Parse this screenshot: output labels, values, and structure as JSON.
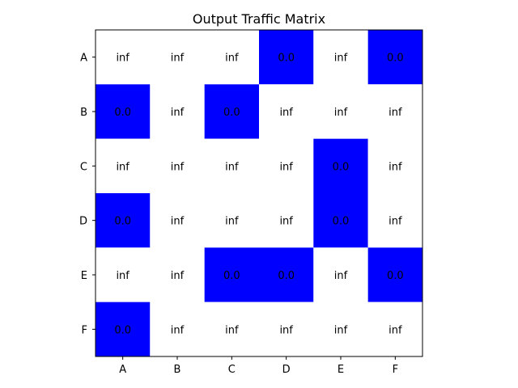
{
  "chart_data": {
    "type": "heatmap",
    "title": "Output Traffic Matrix",
    "xlabel": "",
    "ylabel": "",
    "x_categories": [
      "A",
      "B",
      "C",
      "D",
      "E",
      "F"
    ],
    "y_categories": [
      "A",
      "B",
      "C",
      "D",
      "E",
      "F"
    ],
    "values": [
      [
        "inf",
        "inf",
        "inf",
        "0.0",
        "inf",
        "0.0"
      ],
      [
        "0.0",
        "inf",
        "0.0",
        "inf",
        "inf",
        "inf"
      ],
      [
        "inf",
        "inf",
        "inf",
        "inf",
        "0.0",
        "inf"
      ],
      [
        "0.0",
        "inf",
        "inf",
        "inf",
        "0.0",
        "inf"
      ],
      [
        "inf",
        "inf",
        "0.0",
        "0.0",
        "inf",
        "0.0"
      ],
      [
        "0.0",
        "inf",
        "inf",
        "inf",
        "inf",
        "inf"
      ]
    ],
    "colors": {
      "zero": "#0000ff",
      "inf": "#ffffff"
    },
    "grid": false
  }
}
